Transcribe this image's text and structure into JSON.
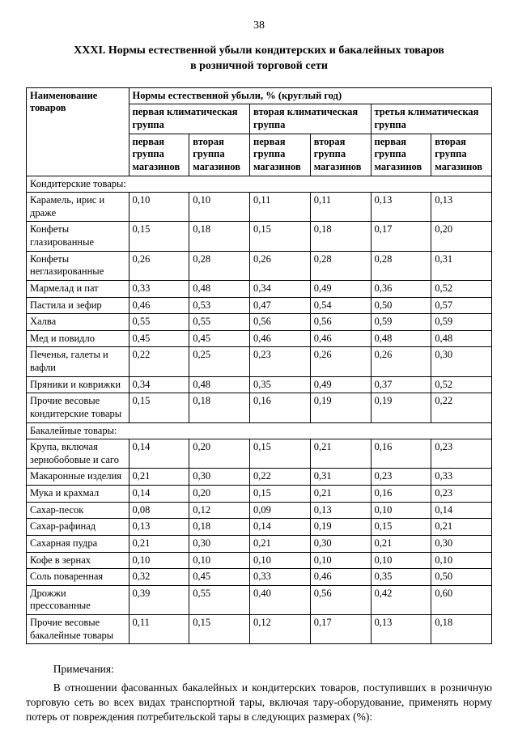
{
  "page_number": "38",
  "title_line1": "XXXI. Нормы естественной убыли кондитерских и бакалейных товаров",
  "title_line2": "в розничной торговой сети",
  "header": {
    "col1": "Наименование товаров",
    "spanning": "Нормы естественной убыли, % (круглый год)",
    "group1": "первая климатическая группа",
    "group2": "вторая климатическая группа",
    "group3": "третья климатическая группа",
    "sub_a": "первая группа магазинов",
    "sub_b": "вторая группа магазинов"
  },
  "sections": [
    {
      "label": "Кондитерские товары:",
      "rows": [
        {
          "name": "Карамель, ирис и драже",
          "v": [
            "0,10",
            "0,10",
            "0,11",
            "0,11",
            "0,13",
            "0,13"
          ]
        },
        {
          "name": "Конфеты глазированные",
          "v": [
            "0,15",
            "0,18",
            "0,15",
            "0,18",
            "0,17",
            "0,20"
          ]
        },
        {
          "name": "Конфеты неглазированные",
          "v": [
            "0,26",
            "0,28",
            "0,26",
            "0,28",
            "0,28",
            "0,31"
          ]
        },
        {
          "name": "Мармелад и пат",
          "v": [
            "0,33",
            "0,48",
            "0,34",
            "0,49",
            "0,36",
            "0,52"
          ]
        },
        {
          "name": "Пастила и зефир",
          "v": [
            "0,46",
            "0,53",
            "0,47",
            "0,54",
            "0,50",
            "0,57"
          ]
        },
        {
          "name": "Халва",
          "v": [
            "0,55",
            "0,55",
            "0,56",
            "0,56",
            "0,59",
            "0,59"
          ]
        },
        {
          "name": "Мед и повидло",
          "v": [
            "0,45",
            "0,45",
            "0,46",
            "0,46",
            "0,48",
            "0,48"
          ]
        },
        {
          "name": "Печенья, галеты и вафли",
          "v": [
            "0,22",
            "0,25",
            "0,23",
            "0,26",
            "0,26",
            "0,30"
          ]
        },
        {
          "name": "Пряники и коврижки",
          "v": [
            "0,34",
            "0,48",
            "0,35",
            "0,49",
            "0,37",
            "0,52"
          ]
        },
        {
          "name": "Прочие весовые кондитерские товары",
          "v": [
            "0,15",
            "0,18",
            "0,16",
            "0,19",
            "0,19",
            "0,22"
          ]
        }
      ]
    },
    {
      "label": "Бакалейные товары:",
      "rows": [
        {
          "name": "Крупа, включая зернобобовые и саго",
          "v": [
            "0,14",
            "0,20",
            "0,15",
            "0,21",
            "0,16",
            "0,23"
          ]
        },
        {
          "name": "Макаронные изделия",
          "v": [
            "0,21",
            "0,30",
            "0,22",
            "0,31",
            "0,23",
            "0,33"
          ]
        },
        {
          "name": "Мука и крахмал",
          "v": [
            "0,14",
            "0,20",
            "0,15",
            "0,21",
            "0,16",
            "0,23"
          ]
        },
        {
          "name": "Сахар-песок",
          "v": [
            "0,08",
            "0,12",
            "0,09",
            "0,13",
            "0,10",
            "0,14"
          ]
        },
        {
          "name": "Сахар-рафинад",
          "v": [
            "0,13",
            "0,18",
            "0,14",
            "0,19",
            "0,15",
            "0,21"
          ]
        },
        {
          "name": "Сахарная пудра",
          "v": [
            "0,21",
            "0,30",
            "0,21",
            "0,30",
            "0,21",
            "0,30"
          ]
        },
        {
          "name": "Кофе в зернах",
          "v": [
            "0,10",
            "0,10",
            "0,10",
            "0,10",
            "0,10",
            "0,10"
          ]
        },
        {
          "name": "Соль поваренная",
          "v": [
            "0,32",
            "0,45",
            "0,33",
            "0,46",
            "0,35",
            "0,50"
          ]
        },
        {
          "name": "Дрожжи прессованные",
          "v": [
            "0,39",
            "0,55",
            "0,40",
            "0,56",
            "0,42",
            "0,60"
          ]
        },
        {
          "name": "Прочие весовые бакалейные товары",
          "v": [
            "0,11",
            "0,15",
            "0,12",
            "0,17",
            "0,13",
            "0,18"
          ]
        }
      ]
    }
  ],
  "notes": {
    "heading": "Примечания:",
    "paragraph": "В отношении фасованных бакалейных и кондитерских товаров, поступивших в розничную торговую сеть во всех видах транспортной тары, включая тару-оборудование, применять норму потерь от повреждения потребительской тары в следующих размерах (%):"
  },
  "colwidths": [
    "22%",
    "13%",
    "13%",
    "13%",
    "13%",
    "13%",
    "13%"
  ]
}
